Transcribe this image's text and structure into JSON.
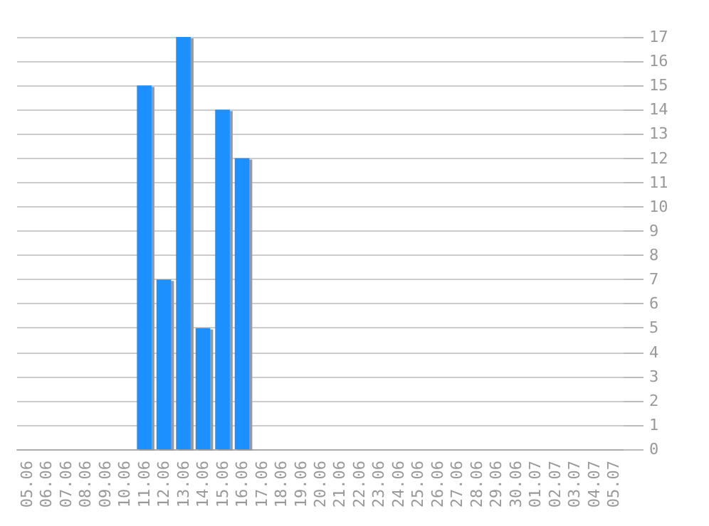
{
  "chart_data": {
    "type": "bar",
    "categories": [
      "05.06",
      "06.06",
      "07.06",
      "08.06",
      "09.06",
      "10.06",
      "11.06",
      "12.06",
      "13.06",
      "14.06",
      "15.06",
      "16.06",
      "17.06",
      "18.06",
      "19.06",
      "20.06",
      "21.06",
      "22.06",
      "23.06",
      "24.06",
      "25.06",
      "26.06",
      "27.06",
      "28.06",
      "29.06",
      "30.06",
      "01.07",
      "02.07",
      "03.07",
      "04.07",
      "05.07"
    ],
    "values": [
      0,
      0,
      0,
      0,
      0,
      0,
      15,
      7,
      17,
      5,
      14,
      12,
      0,
      0,
      0,
      0,
      0,
      0,
      0,
      0,
      0,
      0,
      0,
      0,
      0,
      0,
      0,
      0,
      0,
      0,
      0
    ],
    "color": "#1e90ff",
    "ylim": [
      0,
      17
    ],
    "yticks": [
      0,
      1,
      2,
      3,
      4,
      5,
      6,
      7,
      8,
      9,
      10,
      11,
      12,
      13,
      14,
      15,
      16,
      17
    ],
    "grid": "y"
  }
}
